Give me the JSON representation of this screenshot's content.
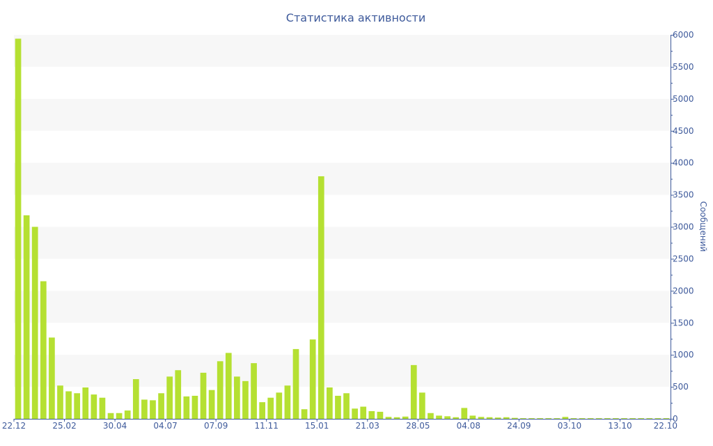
{
  "chart_data": {
    "type": "bar",
    "title": "Статистика активности",
    "xlabel": "",
    "ylabel": "Сообщений",
    "y_axis_position": "right",
    "ylim": [
      0,
      6000
    ],
    "y_ticks": [
      0,
      500,
      1000,
      1500,
      2000,
      2500,
      3000,
      3500,
      4000,
      4500,
      5000,
      5500,
      6000
    ],
    "grid": "alternating horizontal bands",
    "colors": {
      "bar": "#b5e032",
      "axis": "#3e5a9b",
      "band": "#f7f7f7"
    },
    "x_tick_labels": [
      "22.12",
      "25.02",
      "30.04",
      "04.07",
      "07.09",
      "11.11",
      "15.01",
      "21.03",
      "28.05",
      "04.08",
      "24.09",
      "03.10",
      "13.10",
      "22.10"
    ],
    "values": [
      5940,
      3180,
      3000,
      2150,
      1270,
      520,
      430,
      400,
      490,
      380,
      330,
      90,
      90,
      130,
      620,
      300,
      290,
      400,
      660,
      760,
      350,
      360,
      720,
      450,
      900,
      1030,
      660,
      590,
      870,
      260,
      330,
      410,
      520,
      1090,
      150,
      1240,
      3790,
      490,
      360,
      400,
      160,
      190,
      120,
      110,
      30,
      25,
      35,
      840,
      410,
      90,
      50,
      40,
      25,
      170,
      50,
      30,
      25,
      20,
      25,
      15,
      10,
      10,
      10,
      10,
      10,
      30,
      10,
      10,
      10,
      10,
      10,
      10,
      10,
      10,
      10,
      10,
      10,
      10
    ]
  }
}
